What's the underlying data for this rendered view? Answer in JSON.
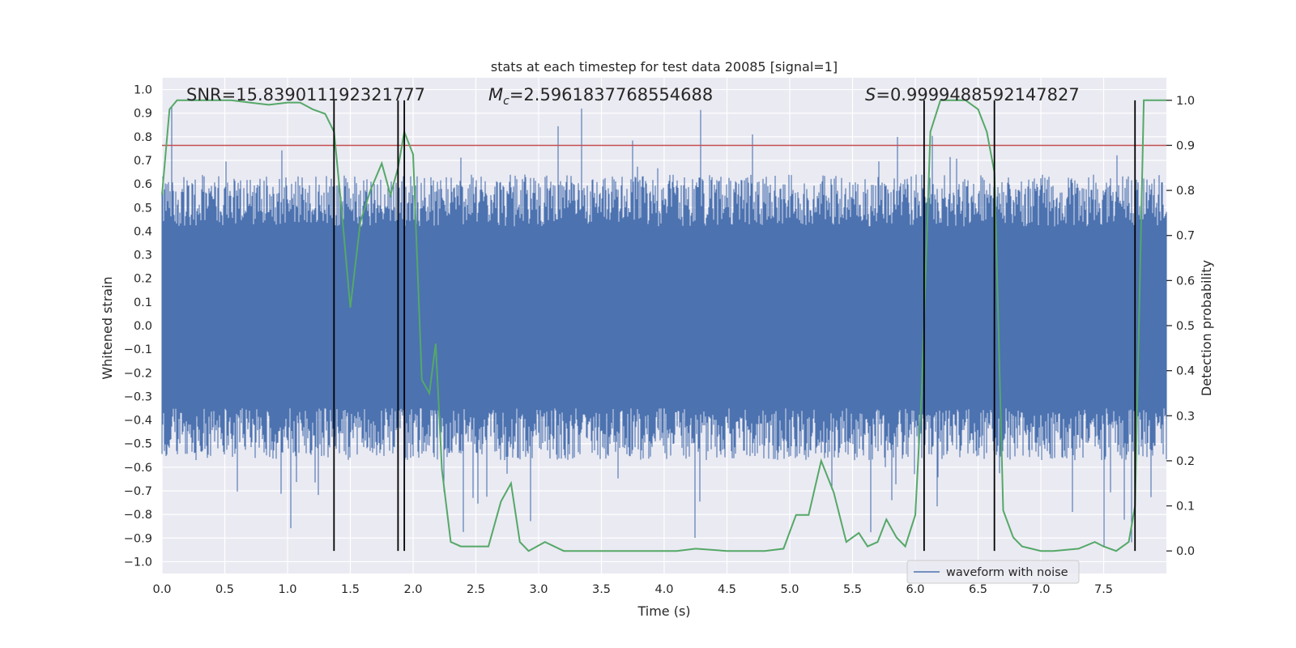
{
  "chart_data": {
    "type": "line",
    "title": "stats at each timestep for test data 20085 [signal=1]",
    "xlabel": "Time (s)",
    "ylabel_left": "Whitened strain",
    "ylabel_right": "Detection probability",
    "xlim": [
      0,
      8
    ],
    "ylim_left": [
      -1.05,
      1.05
    ],
    "ylim_right": [
      -0.05,
      1.05
    ],
    "x_ticks": [
      "0.0",
      "0.5",
      "1.0",
      "1.5",
      "2.0",
      "2.5",
      "3.0",
      "3.5",
      "4.0",
      "4.5",
      "5.0",
      "5.5",
      "6.0",
      "6.5",
      "7.0",
      "7.5"
    ],
    "y_ticks_left": [
      "1.0",
      "0.9",
      "0.8",
      "0.7",
      "0.6",
      "0.5",
      "0.4",
      "0.3",
      "0.2",
      "0.1",
      "0.0",
      "−0.1",
      "−0.2",
      "−0.3",
      "−0.4",
      "−0.5",
      "−0.6",
      "−0.7",
      "−0.8",
      "−0.9",
      "−1.0"
    ],
    "y_ticks_right": [
      "1.0",
      "0.9",
      "0.8",
      "0.7",
      "0.6",
      "0.5",
      "0.4",
      "0.3",
      "0.2",
      "0.1",
      "0.0"
    ],
    "grid": true,
    "legend_position": "lower-right",
    "annotations": {
      "snr": "SNR=15.839011192321777",
      "mc_symbol": "M",
      "mc_sub": "c",
      "mc_value": "=2.5961837768554688",
      "s_symbol": "S",
      "s_value": "=0.9999488592147827"
    },
    "series": [
      {
        "name": "waveform with noise",
        "axis": "left",
        "color": "#4c72b0",
        "style": "noise",
        "core_band": [
          -0.35,
          0.42
        ],
        "envelope": [
          -0.95,
          1.0
        ]
      },
      {
        "axis": "right",
        "color": "#55a868",
        "x": [
          0.0,
          0.06,
          0.12,
          0.25,
          0.4,
          0.55,
          0.7,
          0.85,
          1.0,
          1.1,
          1.2,
          1.3,
          1.37,
          1.43,
          1.5,
          1.58,
          1.66,
          1.75,
          1.82,
          1.88,
          1.93,
          2.0,
          2.07,
          2.13,
          2.18,
          2.23,
          2.3,
          2.38,
          2.5,
          2.6,
          2.7,
          2.78,
          2.85,
          2.92,
          3.05,
          3.2,
          3.5,
          3.8,
          4.1,
          4.25,
          4.5,
          4.8,
          4.95,
          5.05,
          5.15,
          5.25,
          5.35,
          5.45,
          5.55,
          5.62,
          5.7,
          5.77,
          5.85,
          5.92,
          6.0,
          6.05,
          6.12,
          6.2,
          6.3,
          6.4,
          6.5,
          6.57,
          6.63,
          6.7,
          6.78,
          6.85,
          7.0,
          7.1,
          7.3,
          7.43,
          7.5,
          7.6,
          7.7,
          7.75,
          7.82,
          7.9,
          8.0
        ],
        "values": [
          0.79,
          0.98,
          1.0,
          1.0,
          1.0,
          1.0,
          0.995,
          0.99,
          0.995,
          0.995,
          0.98,
          0.97,
          0.93,
          0.76,
          0.54,
          0.73,
          0.8,
          0.86,
          0.79,
          0.85,
          0.93,
          0.88,
          0.38,
          0.35,
          0.46,
          0.18,
          0.02,
          0.01,
          0.01,
          0.01,
          0.11,
          0.15,
          0.02,
          0.0,
          0.02,
          0.0,
          0.0,
          0.0,
          0.0,
          0.005,
          0.0,
          0.0,
          0.005,
          0.08,
          0.08,
          0.2,
          0.13,
          0.02,
          0.04,
          0.01,
          0.02,
          0.07,
          0.03,
          0.01,
          0.08,
          0.35,
          0.93,
          1.0,
          1.0,
          1.0,
          0.98,
          0.93,
          0.84,
          0.09,
          0.03,
          0.01,
          0.0,
          0.0,
          0.005,
          0.02,
          0.01,
          0.0,
          0.02,
          0.1,
          1.0,
          1.0,
          1.0
        ]
      },
      {
        "axis": "right",
        "color": "#c44e52",
        "style": "hline",
        "y": 0.9
      },
      {
        "axis": "right",
        "color": "#000000",
        "style": "vlines",
        "x": [
          1.37,
          1.88,
          1.93,
          6.07,
          6.63,
          7.75
        ],
        "y_range": [
          0.0,
          1.0
        ]
      }
    ]
  }
}
